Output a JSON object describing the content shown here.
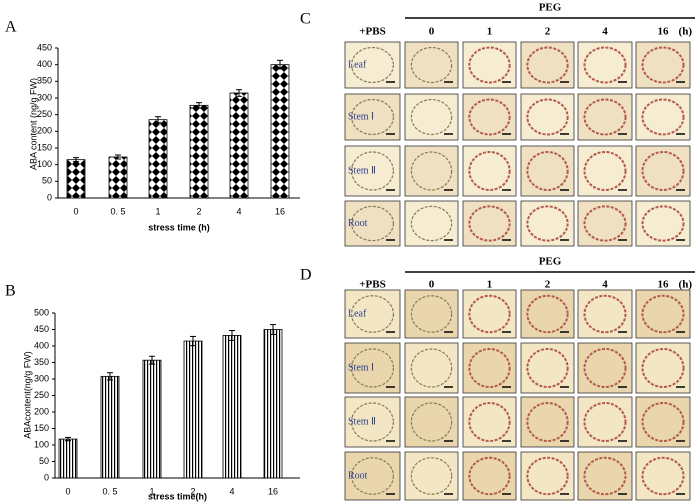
{
  "chart_data": [
    {
      "type": "bar",
      "label": "A",
      "ylabel": "ABA content (ng/g FW)",
      "xlabel": "stress time (h)",
      "categories": [
        "0",
        "0. 5",
        "1",
        "2",
        "4",
        "16"
      ],
      "values": [
        115,
        123,
        235,
        278,
        315,
        400
      ],
      "errors": [
        6,
        6,
        9,
        8,
        10,
        13
      ],
      "ylim": [
        0,
        450
      ],
      "yticks": [
        0,
        50,
        100,
        150,
        200,
        250,
        300,
        350,
        400,
        450
      ],
      "color": "#000000",
      "hatch": "diamond"
    },
    {
      "type": "bar",
      "label": "B",
      "ylabel": "ABAcontent(ng/g FW)",
      "xlabel": "stress time(h)",
      "categories": [
        "0",
        "0. 5",
        "1",
        "2",
        "4",
        "16"
      ],
      "values": [
        118,
        308,
        357,
        415,
        432,
        450
      ],
      "errors": [
        5,
        11,
        12,
        14,
        15,
        15
      ],
      "ylim": [
        0,
        500
      ],
      "yticks": [
        0,
        50,
        100,
        150,
        200,
        250,
        300,
        350,
        400,
        450,
        500
      ],
      "color": "#000000",
      "hatch": "vertical"
    }
  ],
  "panels": [
    {
      "label": "C",
      "header": "PEG",
      "unit": "(h)",
      "columns": [
        "+PBS",
        "0",
        "1",
        "2",
        "4",
        "16"
      ],
      "rows": [
        "Leaf",
        "Stem Ⅰ",
        "Stem Ⅱ",
        "Root"
      ]
    },
    {
      "label": "D",
      "header": "PEG",
      "unit": "(h)",
      "columns": [
        "+PBS",
        "0",
        "1",
        "2",
        "4",
        "16"
      ],
      "rows": [
        "Leaf",
        "Stem Ⅰ",
        "Stem Ⅱ",
        "Root"
      ]
    }
  ]
}
